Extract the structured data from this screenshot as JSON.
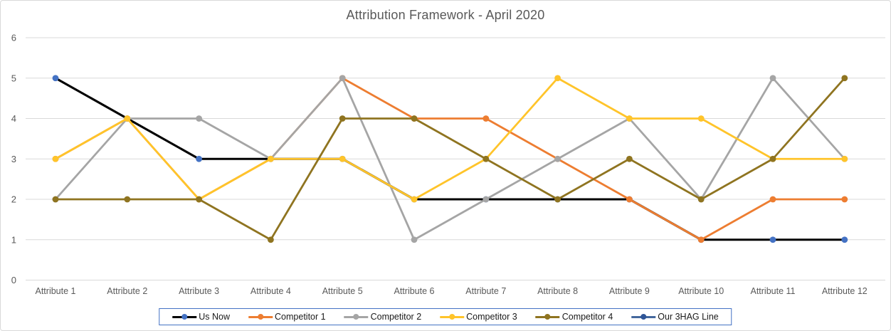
{
  "chart_data": {
    "type": "line",
    "title": "Attribution Framework - April 2020",
    "categories": [
      "Attribute 1",
      "Attribute 2",
      "Attribute 3",
      "Attribute 4",
      "Attribute 5",
      "Attribute 6",
      "Attribute 7",
      "Attribute 8",
      "Attribute 9",
      "Attribute 10",
      "Attribute 11",
      "Attribute 12"
    ],
    "y_ticks": [
      0,
      1,
      2,
      3,
      4,
      5,
      6
    ],
    "ylim": [
      0,
      6
    ],
    "grid": "horizontal",
    "legend_position": "bottom",
    "series": [
      {
        "name": "Us Now",
        "line_color": "#000000",
        "marker_color": "#4472c4",
        "values": [
          5,
          4,
          3,
          3,
          3,
          2,
          2,
          2,
          2,
          1,
          1,
          1
        ]
      },
      {
        "name": "Competitor 1",
        "line_color": "#ED7D31",
        "marker_color": "#ED7D31",
        "values": [
          3,
          4,
          2,
          3,
          5,
          4,
          4,
          3,
          2,
          1,
          2,
          2
        ]
      },
      {
        "name": "Competitor 2",
        "line_color": "#A5A5A5",
        "marker_color": "#A5A5A5",
        "values": [
          2,
          4,
          4,
          3,
          5,
          1,
          2,
          3,
          4,
          2,
          5,
          3
        ]
      },
      {
        "name": "Competitor 3",
        "line_color": "#FFC42A",
        "marker_color": "#FFC42A",
        "values": [
          3,
          4,
          2,
          3,
          3,
          2,
          3,
          5,
          4,
          4,
          3,
          3
        ]
      },
      {
        "name": "Competitor 4",
        "line_color": "#8F7420",
        "marker_color": "#8F7420",
        "values": [
          2,
          2,
          2,
          1,
          4,
          4,
          3,
          2,
          3,
          2,
          3,
          5
        ]
      },
      {
        "name": "Our 3HAG Line",
        "line_color": "#44689D",
        "marker_color": "#2F5597",
        "values": []
      }
    ],
    "colors": {
      "grid": "#D9D9D9",
      "axis_text": "#595959",
      "title_text": "#595959",
      "legend_border": "#4472C4",
      "frame_border": "#D9D9D9",
      "background": "#FFFFFF"
    }
  }
}
